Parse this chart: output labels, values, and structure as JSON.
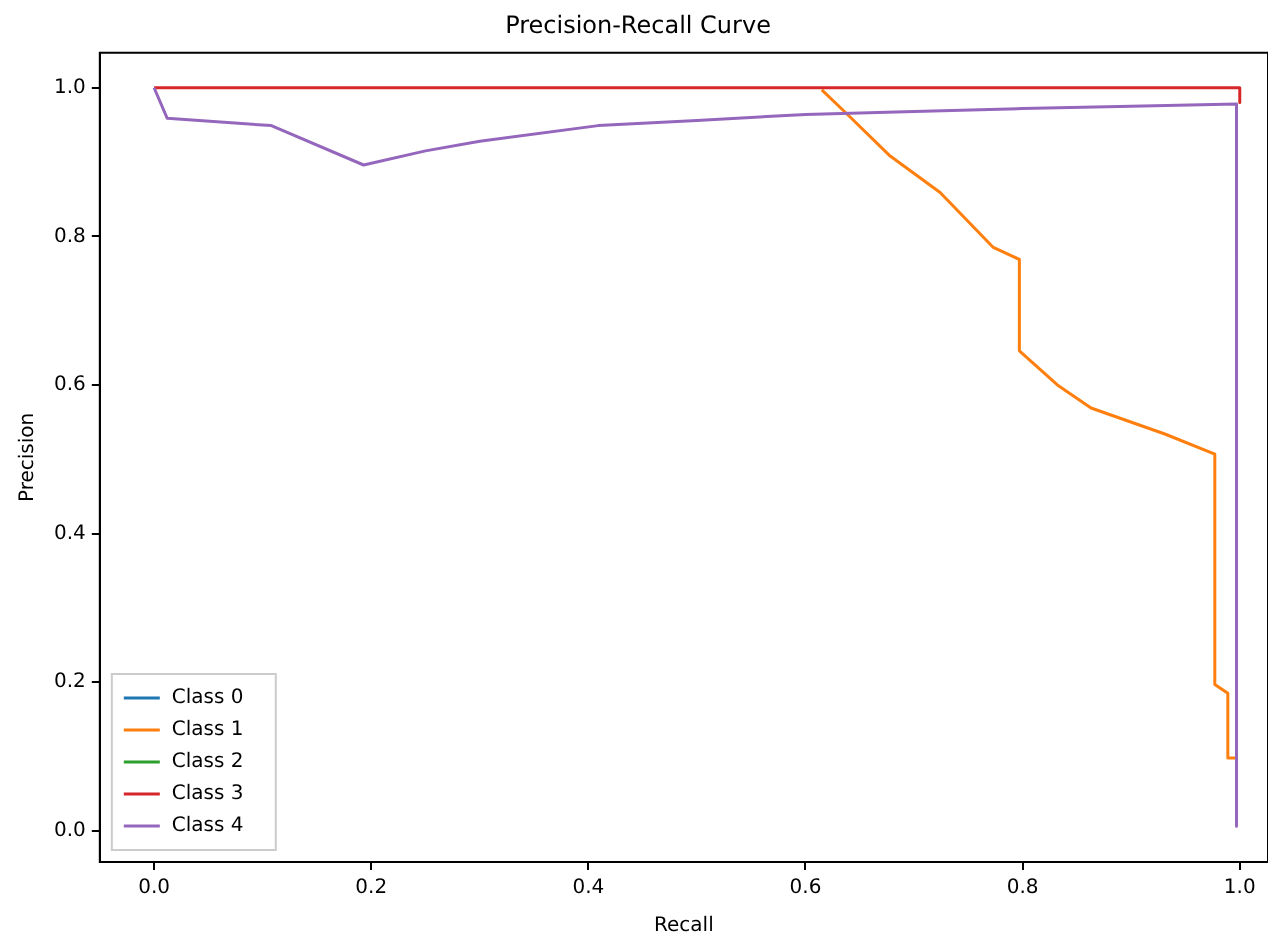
{
  "chart_data": {
    "type": "line",
    "title": "Precision-Recall Curve",
    "xlabel": "Recall",
    "ylabel": "Precision",
    "xlim": [
      -0.05,
      1.026
    ],
    "ylim": [
      -0.042,
      1.047
    ],
    "xticks": [
      {
        "value": 0,
        "label": "0.0"
      },
      {
        "value": 0.2,
        "label": "0.2"
      },
      {
        "value": 0.4,
        "label": "0.4"
      },
      {
        "value": 0.6,
        "label": "0.6"
      },
      {
        "value": 0.8,
        "label": "0.8"
      },
      {
        "value": 1,
        "label": "1.0"
      }
    ],
    "yticks": [
      {
        "value": 0,
        "label": "0.0"
      },
      {
        "value": 0.2,
        "label": "0.2"
      },
      {
        "value": 0.4,
        "label": "0.4"
      },
      {
        "value": 0.6,
        "label": "0.6"
      },
      {
        "value": 0.8,
        "label": "0.8"
      },
      {
        "value": 1,
        "label": "1.0"
      }
    ],
    "grid": false,
    "legend": "bottom left",
    "marker": "none",
    "line_style": "solid",
    "series": [
      {
        "name": "Class 0",
        "color": "#1f77b4"
      },
      {
        "name": "Class 1",
        "color": "#ff7f0e",
        "x": [
          0.615,
          0.638,
          0.678,
          0.724,
          0.773,
          0.797,
          0.797,
          0.832,
          0.863,
          0.931,
          0.977,
          0.977,
          0.989,
          0.989,
          0.997
        ],
        "values": [
          0.997,
          0.965,
          0.908,
          0.859,
          0.785,
          0.769,
          0.646,
          0.6,
          0.569,
          0.534,
          0.507,
          0.197,
          0.185,
          0.098,
          0.098
        ]
      },
      {
        "name": "Class 2",
        "color": "#2ca02c"
      },
      {
        "name": "Class 3",
        "color": "#d62728",
        "x": [
          0,
          1,
          1
        ],
        "values": [
          1,
          1,
          0.98
        ]
      },
      {
        "name": "Class 4",
        "color": "#9467bd",
        "x": [
          0,
          0.012,
          0.108,
          0.193,
          0.25,
          0.3,
          0.409,
          0.5,
          0.6,
          0.7,
          0.8,
          0.9,
          0.997,
          0.997
        ],
        "values": [
          1,
          0.959,
          0.949,
          0.896,
          0.915,
          0.928,
          0.949,
          0.956,
          0.964,
          0.968,
          0.972,
          0.975,
          0.978,
          0.006
        ]
      }
    ]
  }
}
